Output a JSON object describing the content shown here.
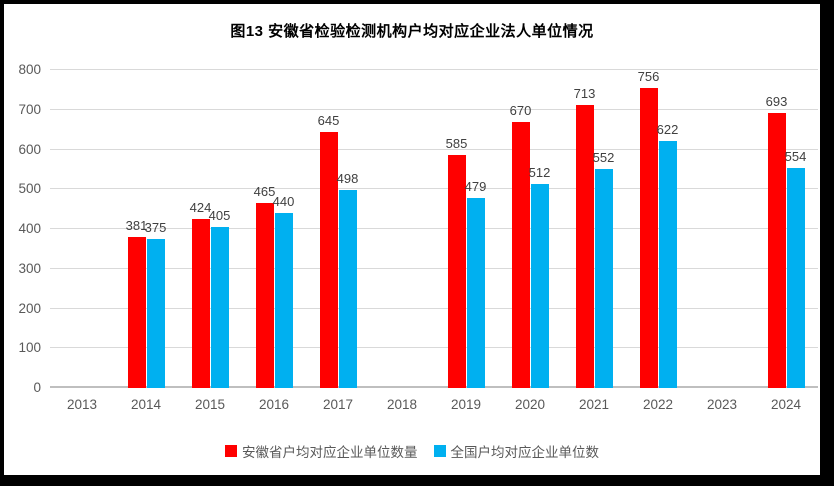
{
  "title": "图13  安徽省检验检测机构户均对应企业法人单位情况",
  "chart_data": {
    "type": "bar",
    "title": "图13  安徽省检验检测机构户均对应企业法人单位情况",
    "categories": [
      "2013",
      "2014",
      "2015",
      "2016",
      "2017",
      "2018",
      "2019",
      "2020",
      "2021",
      "2022",
      "2023",
      "2024"
    ],
    "series": [
      {
        "name": "安徽省户均对应企业单位数量",
        "color": "#FF0000",
        "values": [
          null,
          381,
          424,
          465,
          645,
          null,
          585,
          670,
          713,
          756,
          null,
          693
        ]
      },
      {
        "name": "全国户均对应企业单位数",
        "color": "#00B0F0",
        "values": [
          null,
          375,
          405,
          440,
          498,
          null,
          479,
          512,
          552,
          622,
          null,
          554
        ]
      }
    ],
    "xlabel": "",
    "ylabel": "",
    "ylim": [
      0,
      800
    ],
    "yticks": [
      0,
      100,
      200,
      300,
      400,
      500,
      600,
      700,
      800
    ],
    "grid": "horizontal",
    "legend_position": "bottom",
    "data_labels": true
  },
  "colors": {
    "series_anhui": "#FF0000",
    "series_national": "#00B0F0",
    "gridline": "#D9D9D9",
    "axis_line": "#BFBFBF",
    "tick_label": "#595959",
    "data_label": "#404040",
    "frame_border": "#000000",
    "background": "#FFFFFF"
  }
}
